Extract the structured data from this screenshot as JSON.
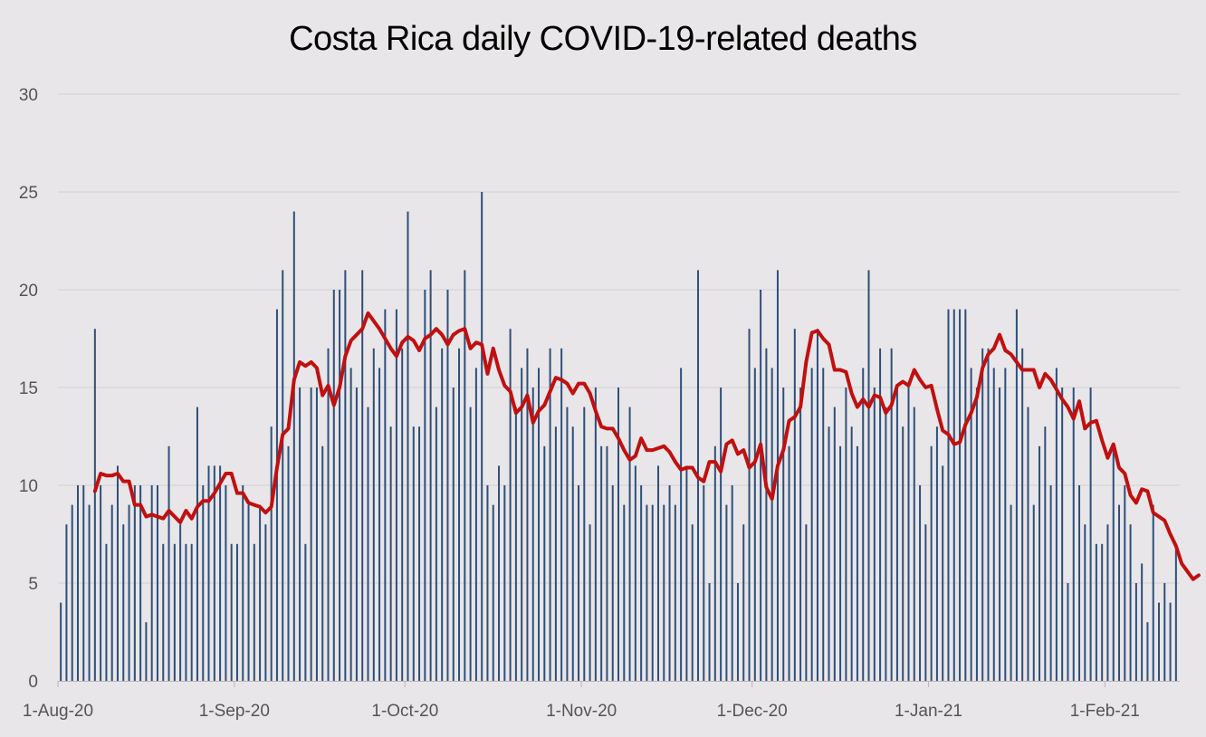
{
  "chart_data": {
    "type": "bar",
    "title": "Costa Rica daily COVID-19-related deaths",
    "xlabel": "",
    "ylabel": "",
    "ylim": [
      0,
      30
    ],
    "yticks": [
      "0",
      "5",
      "10",
      "15",
      "20",
      "25",
      "30"
    ],
    "x_start": "2020-08-01",
    "x_end": "2021-02-15",
    "x_tick_labels": [
      {
        "date": "2020-08-01",
        "label": "1-Aug-20"
      },
      {
        "date": "2020-09-01",
        "label": "1-Sep-20"
      },
      {
        "date": "2020-10-01",
        "label": "1-Oct-20"
      },
      {
        "date": "2020-11-01",
        "label": "1-Nov-20"
      },
      {
        "date": "2020-12-01",
        "label": "1-Dec-20"
      },
      {
        "date": "2021-01-01",
        "label": "1-Jan-21"
      },
      {
        "date": "2021-02-01",
        "label": "1-Feb-21"
      }
    ],
    "grid": true,
    "legend": "none",
    "series": [
      {
        "type": "bar",
        "color": "#2f4f7a",
        "values": [
          4,
          8,
          9,
          10,
          10,
          9,
          18,
          10,
          7,
          9,
          11,
          8,
          9,
          10,
          10,
          3,
          10,
          10,
          7,
          12,
          7,
          8,
          7,
          7,
          14,
          10,
          11,
          11,
          11,
          10,
          7,
          7,
          10,
          9,
          7,
          9,
          8,
          13,
          19,
          21,
          12,
          24,
          15,
          7,
          15,
          15,
          12,
          17,
          20,
          20,
          21,
          16,
          15,
          21,
          14,
          17,
          16,
          19,
          13,
          19,
          17,
          24,
          13,
          13,
          20,
          21,
          14,
          17,
          20,
          15,
          17,
          21,
          14,
          16,
          25,
          10,
          9,
          11,
          10,
          18,
          14,
          16,
          17,
          15,
          16,
          12,
          17,
          13,
          17,
          14,
          13,
          10,
          14,
          8,
          15,
          12,
          12,
          10,
          15,
          9,
          14,
          11,
          10,
          9,
          9,
          11,
          9,
          10,
          9,
          16,
          11,
          8,
          21,
          10,
          5,
          12,
          15,
          9,
          10,
          5,
          8,
          18,
          16,
          20,
          17,
          16,
          21,
          15,
          12,
          18,
          15,
          8,
          16,
          18,
          16,
          13,
          14,
          12,
          15,
          13,
          12,
          16,
          21,
          15,
          17,
          14,
          17,
          15,
          13,
          15,
          14,
          10,
          8,
          12,
          13,
          11,
          19,
          19,
          19,
          19,
          16,
          15,
          17,
          17,
          16,
          15,
          16,
          9,
          19,
          17,
          14,
          9,
          12,
          13,
          10,
          16,
          15,
          5,
          15,
          10,
          8,
          15,
          7,
          7,
          8,
          12,
          9,
          10,
          8,
          5,
          6,
          3,
          9,
          4,
          5,
          4,
          7
        ]
      },
      {
        "type": "line",
        "color": "#c01010",
        "values": [
          null,
          null,
          null,
          null,
          null,
          null,
          9.7,
          10.6,
          10.5,
          10.5,
          10.6,
          10.2,
          10.2,
          9.0,
          9.0,
          8.4,
          8.5,
          8.4,
          8.3,
          8.7,
          8.4,
          8.1,
          8.7,
          8.3,
          8.9,
          9.2,
          9.2,
          9.6,
          10.1,
          10.6,
          10.6,
          9.6,
          9.6,
          9.1,
          9.0,
          8.9,
          8.6,
          8.9,
          10.9,
          12.6,
          12.9,
          15.4,
          16.3,
          16.1,
          16.3,
          16.0,
          14.6,
          15.1,
          14.1,
          15.0,
          16.6,
          17.4,
          17.7,
          18.0,
          18.8,
          18.4,
          18.0,
          17.5,
          17.0,
          16.6,
          17.3,
          17.6,
          17.4,
          16.9,
          17.5,
          17.7,
          18.0,
          17.7,
          17.2,
          17.7,
          17.9,
          18.0,
          17.0,
          17.3,
          17.2,
          15.7,
          17.0,
          15.9,
          15.1,
          14.8,
          13.7,
          14.0,
          14.6,
          13.2,
          13.8,
          14.1,
          14.8,
          15.5,
          15.4,
          15.2,
          14.7,
          15.2,
          15.2,
          14.7,
          13.8,
          13.0,
          12.9,
          12.9,
          12.4,
          11.8,
          11.3,
          11.5,
          12.4,
          11.8,
          11.8,
          11.9,
          12.0,
          11.7,
          11.2,
          10.8,
          10.9,
          10.9,
          10.4,
          10.2,
          11.2,
          11.2,
          10.7,
          12.1,
          12.3,
          11.6,
          11.8,
          10.9,
          11.2,
          12.1,
          9.9,
          9.3,
          11.0,
          11.8,
          13.3,
          13.5,
          14.0,
          16.3,
          17.8,
          17.9,
          17.5,
          17.2,
          15.9,
          15.9,
          15.8,
          14.7,
          14.0,
          14.4,
          14.0,
          14.6,
          14.5,
          13.7,
          14.1,
          15.1,
          15.3,
          15.1,
          15.9,
          15.4,
          15.0,
          15.1,
          13.9,
          12.8,
          12.6,
          12.1,
          12.2,
          13.1,
          13.7,
          14.5,
          16.0,
          16.7,
          17.0,
          17.7,
          16.9,
          16.7,
          16.3,
          15.9,
          15.9,
          15.9,
          15.0,
          15.7,
          15.4,
          14.9,
          14.4,
          14.0,
          13.4,
          14.3,
          12.9,
          13.2,
          13.3,
          12.3,
          11.4,
          12.1,
          10.9,
          10.6,
          9.5,
          9.1,
          9.8,
          9.7,
          8.6,
          8.4,
          8.2,
          7.5,
          6.9,
          6.0,
          5.6,
          5.2,
          5.4
        ]
      }
    ]
  }
}
